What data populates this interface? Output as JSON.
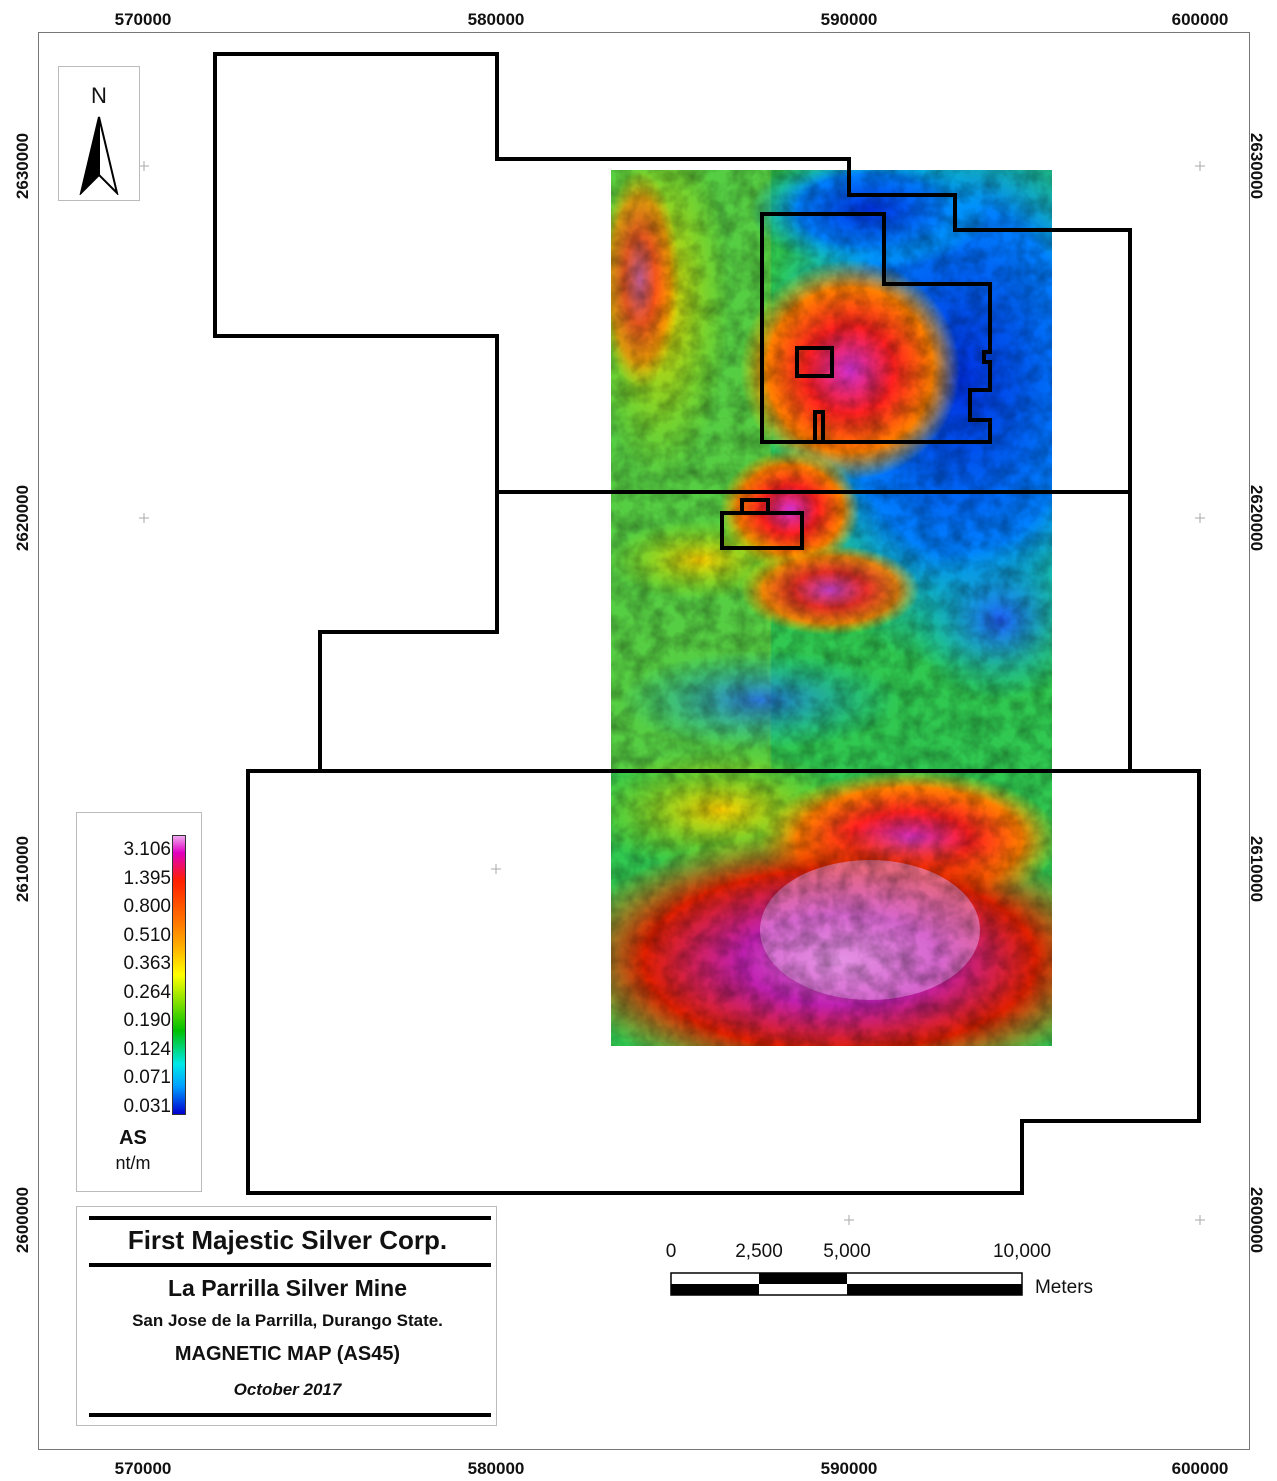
{
  "axes": {
    "x_ticks": [
      "570000",
      "580000",
      "590000",
      "600000"
    ],
    "y_ticks": [
      "2630000",
      "2620000",
      "2610000",
      "2600000"
    ]
  },
  "north_arrow": {
    "label": "N",
    "icon": "north-arrow-icon"
  },
  "legend": {
    "values": [
      "3.106",
      "1.395",
      "0.800",
      "0.510",
      "0.363",
      "0.264",
      "0.190",
      "0.124",
      "0.071",
      "0.031"
    ],
    "title": "AS",
    "unit": "nt/m",
    "colors": [
      "#f0a8f0",
      "#e000c0",
      "#ff2000",
      "#ff7000",
      "#ffb000",
      "#ffff00",
      "#80e000",
      "#00c000",
      "#00e8e8",
      "#00a0ff",
      "#0000d0"
    ]
  },
  "title_block": {
    "company": "First Majestic Silver Corp.",
    "mine": "La Parrilla Silver Mine",
    "location": "San Jose de la Parrilla, Durango State.",
    "map_title": "MAGNETIC MAP (AS45)",
    "date": "October 2017"
  },
  "scale_bar": {
    "labels": [
      "0",
      "2,500",
      "5,000",
      "10,000"
    ],
    "unit": "Meters"
  }
}
